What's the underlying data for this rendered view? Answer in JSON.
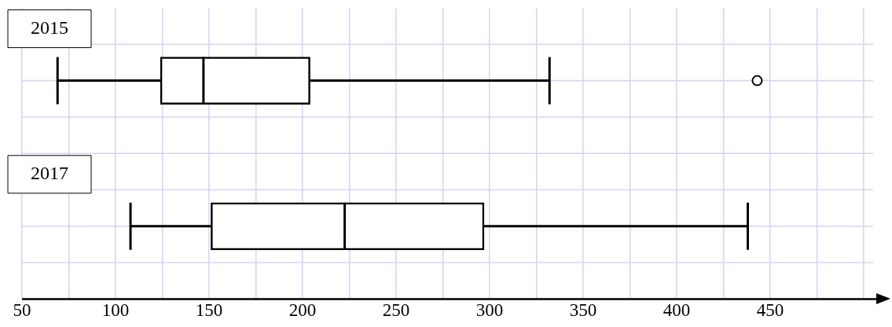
{
  "chart_data": {
    "type": "box",
    "orientation": "horizontal",
    "categories": [
      "2015",
      "2017"
    ],
    "boxes": [
      {
        "low": 69,
        "q1": 124,
        "median": 147,
        "q3": 204,
        "high": 332,
        "outliers": [
          443
        ]
      },
      {
        "low": 108,
        "q1": 151,
        "median": 222.5,
        "q3": 297,
        "high": 438
      }
    ],
    "xlim": [
      50,
      505
    ],
    "xticks": [
      50,
      {
        "value": 75,
        "label": null
      },
      100,
      {
        "value": 125,
        "label": null
      },
      150,
      {
        "value": 175,
        "label": null
      },
      200,
      {
        "value": 225,
        "label": null
      },
      250,
      {
        "value": 275,
        "label": null
      },
      300,
      {
        "value": 325,
        "label": null
      },
      350,
      {
        "value": 375,
        "label": null
      },
      400,
      {
        "value": 425,
        "label": null
      },
      450,
      {
        "value": 475,
        "label": null
      },
      {
        "value": 500,
        "label": null
      }
    ],
    "grid": true
  }
}
